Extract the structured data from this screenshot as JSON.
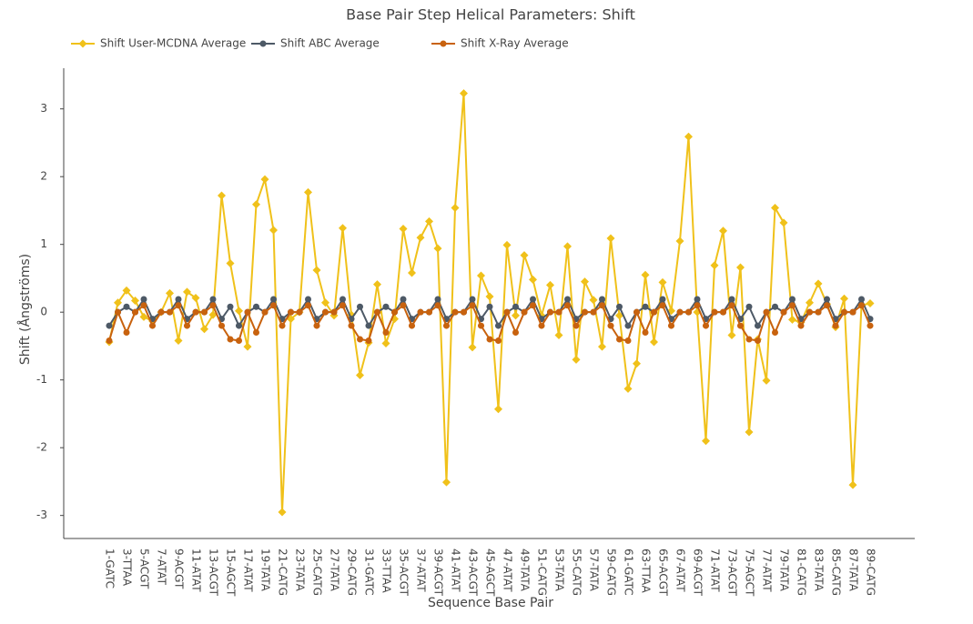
{
  "chart_data": {
    "type": "line",
    "title": "Base Pair Step Helical Parameters: Shift",
    "xlabel": "Sequence Base Pair",
    "ylabel": "Shift (Ångströms)",
    "categories": [
      "1-GATC",
      null,
      "3-TTAA",
      null,
      "5-ACGT",
      null,
      "7-ATAT",
      null,
      "9-ACGT",
      null,
      "11-ATAT",
      null,
      "13-ACGT",
      null,
      "15-AGCT",
      null,
      "17-ATAT",
      null,
      "19-TATA",
      null,
      "21-CATG",
      null,
      "23-TATA",
      null,
      "25-CATG",
      null,
      "27-TATA",
      null,
      "29-CATG",
      null,
      "31-GATC",
      null,
      "33-TTAA",
      null,
      "35-ACGT",
      null,
      "37-ATAT",
      null,
      "39-ACGT",
      null,
      "41-ATAT",
      null,
      "43-ACGT",
      null,
      "45-AGCT",
      null,
      "47-ATAT",
      null,
      "49-TATA",
      null,
      "51-CATG",
      null,
      "53-TATA",
      null,
      "55-CATG",
      null,
      "57-TATA",
      null,
      "59-CATG",
      null,
      "61-GATC",
      null,
      "63-TTAA",
      null,
      "65-ACGT",
      null,
      "67-ATAT",
      null,
      "69-ACGT",
      null,
      "71-ATAT",
      null,
      "73-ACGT",
      null,
      "75-AGCT",
      null,
      "77-ATAT",
      null,
      "79-TATA",
      null,
      "81-CATG",
      null,
      "83-TATA",
      null,
      "85-CATG",
      null,
      "87-TATA",
      null,
      "89-CATG"
    ],
    "series": [
      {
        "name": "Shift User-MCDNA Average",
        "color": "#f0c11a",
        "marker": "diamond",
        "values": [
          -0.44,
          0.14,
          0.32,
          0.17,
          -0.07,
          -0.13,
          0,
          0.28,
          -0.42,
          0.3,
          0.21,
          -0.25,
          -0.04,
          1.72,
          0.72,
          0.02,
          -0.51,
          1.59,
          1.96,
          1.21,
          -2.95,
          -0.1,
          0,
          1.77,
          0.62,
          0.14,
          -0.05,
          1.24,
          -0.04,
          -0.93,
          -0.45,
          0.41,
          -0.46,
          -0.1,
          1.23,
          0.58,
          1.1,
          1.34,
          0.94,
          -2.51,
          1.54,
          3.23,
          -0.52,
          0.54,
          0.23,
          -1.43,
          0.99,
          -0.05,
          0.84,
          0.48,
          -0.05,
          0.4,
          -0.34,
          0.97,
          -0.7,
          0.45,
          0.18,
          -0.51,
          1.09,
          -0.05,
          -1.13,
          -0.76,
          0.55,
          -0.44,
          0.44,
          0.02,
          1.05,
          2.59,
          0,
          -1.9,
          0.69,
          1.2,
          -0.34,
          0.66,
          -1.77,
          -0.4,
          -1.01,
          1.54,
          1.32,
          -0.11,
          -0.15,
          0.14,
          0.42,
          0.12,
          -0.22,
          0.2,
          -2.55,
          0.1,
          0.13
        ]
      },
      {
        "name": "Shift ABC Average",
        "color": "#4d5966",
        "marker": "circle",
        "values": [
          -0.2,
          0,
          0.08,
          0,
          0.19,
          -0.1,
          0,
          0,
          0.19,
          -0.1,
          0,
          0,
          0.19,
          -0.1,
          0.08,
          -0.2,
          0,
          0.08,
          0,
          0.19,
          -0.1,
          0,
          0,
          0.19,
          -0.1,
          0,
          0,
          0.19,
          -0.1,
          0.08,
          -0.2,
          0,
          0.08,
          0,
          0.19,
          -0.1,
          0,
          0,
          0.19,
          -0.1,
          0,
          0,
          0.19,
          -0.1,
          0.08,
          -0.2,
          0,
          0.08,
          0,
          0.19,
          -0.1,
          0,
          0,
          0.19,
          -0.1,
          0,
          0,
          0.19,
          -0.1,
          0.08,
          -0.2,
          0,
          0.08,
          0,
          0.19,
          -0.1,
          0,
          0,
          0.19,
          -0.1,
          0,
          0,
          0.19,
          -0.1,
          0.08,
          -0.2,
          0,
          0.08,
          0,
          0.19,
          -0.1,
          0,
          0,
          0.19,
          -0.1,
          0,
          0,
          0.19,
          -0.1
        ]
      },
      {
        "name": "Shift X-Ray Average",
        "color": "#c8620e",
        "marker": "circle",
        "values": [
          -0.42,
          0,
          -0.3,
          0,
          0.1,
          -0.2,
          0,
          0,
          0.1,
          -0.2,
          0,
          0,
          0.1,
          -0.2,
          -0.4,
          -0.42,
          0,
          -0.3,
          0,
          0.1,
          -0.2,
          0,
          0,
          0.1,
          -0.2,
          0,
          0,
          0.1,
          -0.2,
          -0.4,
          -0.42,
          0,
          -0.3,
          0,
          0.1,
          -0.2,
          0,
          0,
          0.1,
          -0.2,
          0,
          0,
          0.1,
          -0.2,
          -0.4,
          -0.42,
          0,
          -0.3,
          0,
          0.1,
          -0.2,
          0,
          0,
          0.1,
          -0.2,
          0,
          0,
          0.1,
          -0.2,
          -0.4,
          -0.42,
          0,
          -0.3,
          0,
          0.1,
          -0.2,
          0,
          0,
          0.1,
          -0.2,
          0,
          0,
          0.1,
          -0.2,
          -0.4,
          -0.42,
          0,
          -0.3,
          0,
          0.1,
          -0.2,
          0,
          0,
          0.1,
          -0.2,
          0,
          0,
          0.1,
          -0.2
        ]
      }
    ],
    "ylim": [
      -3.34,
      3.6
    ],
    "yticks": [
      -3,
      -2,
      -1,
      0,
      1,
      2,
      3
    ],
    "grid": false
  }
}
